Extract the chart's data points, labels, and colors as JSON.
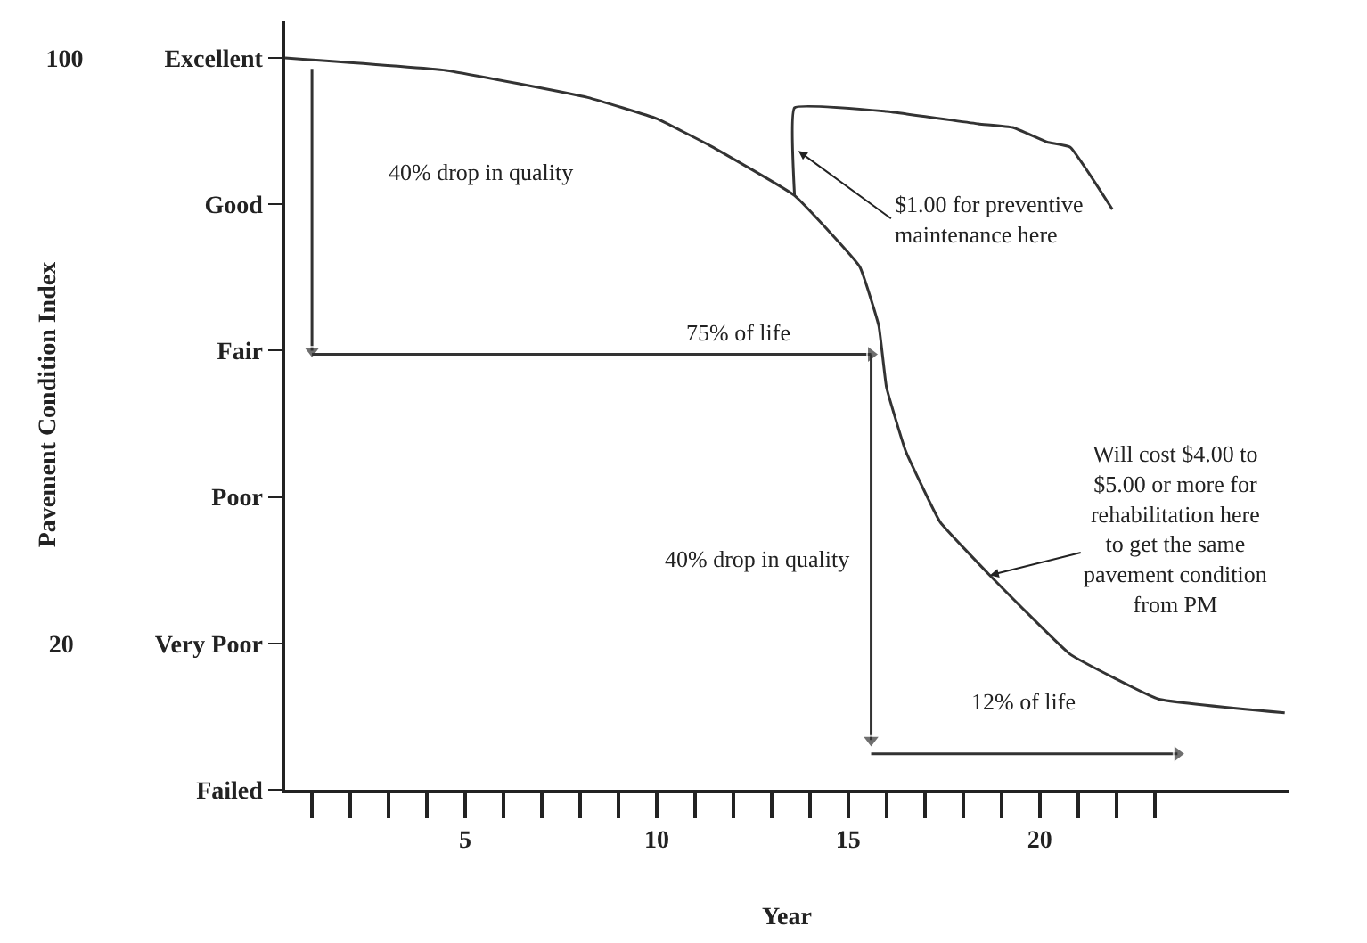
{
  "chart_data": {
    "type": "line",
    "xlabel": "Year",
    "ylabel": "Pavement Condition Index",
    "xlim": [
      0.3,
      26.5
    ],
    "xticks": [
      {
        "value": 1,
        "label": null
      },
      {
        "value": 2,
        "label": null
      },
      {
        "value": 3,
        "label": null
      },
      {
        "value": 4,
        "label": null
      },
      5,
      {
        "value": 6,
        "label": null
      },
      {
        "value": 7,
        "label": null
      },
      {
        "value": 8,
        "label": null
      },
      {
        "value": 9,
        "label": null
      },
      10,
      {
        "value": 11,
        "label": null
      },
      {
        "value": 12,
        "label": null
      },
      {
        "value": 13,
        "label": null
      },
      {
        "value": 14,
        "label": null
      },
      15,
      {
        "value": 16,
        "label": null
      },
      {
        "value": 17,
        "label": null
      },
      {
        "value": 18,
        "label": null
      },
      {
        "value": 19,
        "label": null
      },
      20,
      {
        "value": 21,
        "label": null
      },
      {
        "value": 22,
        "label": null
      },
      {
        "value": 23,
        "label": null
      }
    ],
    "ylim": [
      0,
      105
    ],
    "yticks": [
      {
        "value": 100,
        "label": "100 Excellent"
      },
      {
        "value": 80,
        "label": "Good"
      },
      {
        "value": 60,
        "label": "Fair"
      },
      {
        "value": 40,
        "label": "Poor"
      },
      {
        "value": 20,
        "label": "20 Very Poor"
      },
      {
        "value": 0,
        "label": "Failed"
      }
    ],
    "grid": false,
    "series": [
      {
        "type": "line",
        "color": "#333333",
        "marker": "none",
        "x": [
          0.3,
          4.5,
          8.2,
          10,
          11.4,
          13.6,
          15.3,
          15.8,
          16,
          16.5,
          17.4,
          18.7,
          20.8,
          23.1,
          26.4
        ],
        "values": [
          100,
          98.3,
          94.6,
          91.7,
          88,
          81.2,
          71.5,
          63.4,
          55,
          46.3,
          36.6,
          29.3,
          18.5,
          12.4,
          10.5
        ]
      },
      {
        "type": "line",
        "color": "#333333",
        "marker": "none",
        "x": [
          13.6,
          13.6,
          16,
          18.4,
          19.3,
          20.2,
          20.8,
          21.9
        ],
        "values": [
          81.2,
          93.2,
          92.7,
          91,
          90.5,
          88.5,
          87.8,
          79.3
        ]
      },
      {
        "type": "line",
        "color": "#333333",
        "marker": "triangle",
        "x": [
          1,
          1
        ],
        "values": [
          98.5,
          60
        ]
      },
      {
        "type": "line",
        "color": "#333333",
        "marker": "triangle",
        "x": [
          1,
          15.6
        ],
        "values": [
          59.5,
          59.5
        ]
      },
      {
        "type": "line",
        "color": "#333333",
        "marker": "triangle",
        "x": [
          15.6,
          15.6
        ],
        "values": [
          59.5,
          6.8
        ]
      },
      {
        "type": "line",
        "color": "#333333",
        "marker": "triangle",
        "x": [
          15.6,
          23.6
        ],
        "values": [
          4.9,
          4.9
        ]
      }
    ],
    "annotations": [
      "40% drop in quality",
      "75% of life",
      {
        "text": "$1.00 for preventive\nmaintenance here",
        "x": 13.7,
        "y": 87.3
      },
      {
        "text": "Will cost $4.00 to\n$5.00 or more for\nrehabilitation here\nto get the same\npavement condition\nfrom PM",
        "x": 18.7,
        "y": 29.3
      },
      "40% drop in quality",
      "12% of life"
    ]
  }
}
